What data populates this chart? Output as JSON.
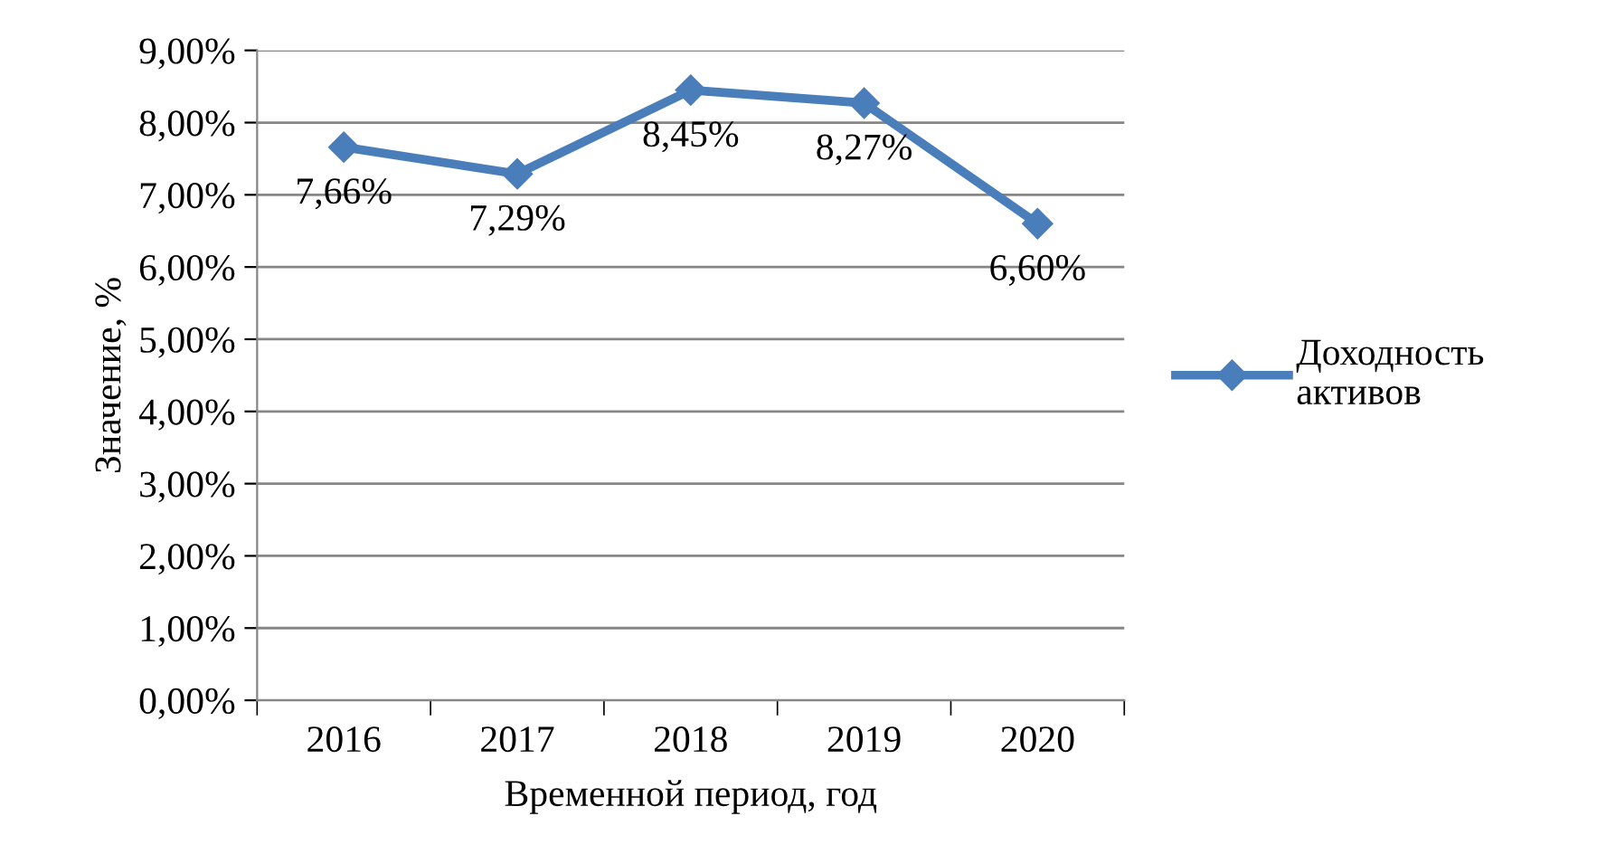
{
  "chart_data": {
    "type": "line",
    "xlabel": "Временной период, год",
    "ylabel": "Значение, %",
    "categories": [
      "2016",
      "2017",
      "2018",
      "2019",
      "2020"
    ],
    "series": [
      {
        "name": "Доходность активов",
        "color": "#4a7ebb",
        "values": [
          7.66,
          7.29,
          8.45,
          8.27,
          6.6
        ],
        "value_labels": [
          "7,66%",
          "7,29%",
          "8,45%",
          "8,27%",
          "6,60%"
        ]
      }
    ],
    "ylim": [
      0,
      9
    ],
    "yticks": [
      {
        "value": 0,
        "label": "0,00%"
      },
      {
        "value": 1,
        "label": "1,00%"
      },
      {
        "value": 2,
        "label": "2,00%"
      },
      {
        "value": 3,
        "label": "3,00%"
      },
      {
        "value": 4,
        "label": "4,00%"
      },
      {
        "value": 5,
        "label": "5,00%"
      },
      {
        "value": 6,
        "label": "6,00%"
      },
      {
        "value": 7,
        "label": "7,00%"
      },
      {
        "value": 8,
        "label": "8,00%"
      },
      {
        "value": 9,
        "label": "9,00%"
      }
    ],
    "grid": "y",
    "legend": "right",
    "marker": "diamond",
    "line_style": "solid"
  }
}
